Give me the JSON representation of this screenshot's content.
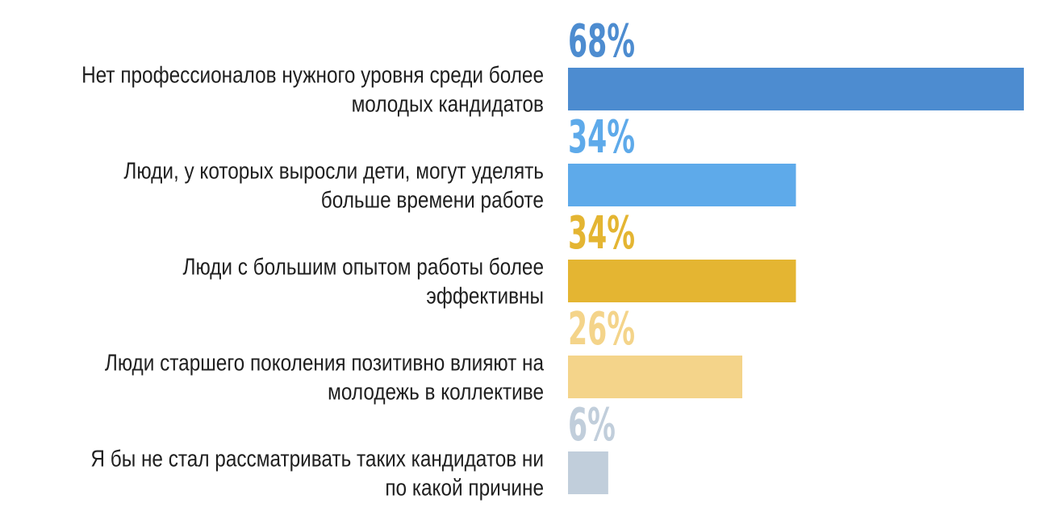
{
  "chart_data": {
    "type": "bar",
    "orientation": "horizontal",
    "categories": [
      "Нет профессионалов нужного уровня среди более молодых кандидатов",
      "Люди, у которых выросли дети, могут уделять больше времени работе",
      "Люди с большим опытом работы более эффективны",
      "Люди старшего поколения позитивно влияют на молодежь в коллективе",
      "Я бы не стал рассматривать таких кандидатов ни по какой причине"
    ],
    "category_lines": [
      [
        "Нет профессионалов нужного уровня среди более",
        "молодых кандидатов"
      ],
      [
        "Люди, у которых выросли дети, могут уделять",
        "больше времени работе"
      ],
      [
        "Люди с большим опытом работы более",
        "эффективны"
      ],
      [
        "Люди старшего поколения позитивно влияют на",
        "молодежь в коллективе"
      ],
      [
        "Я бы не стал рассматривать таких кандидатов ни",
        "по какой причине"
      ]
    ],
    "values": [
      68,
      34,
      34,
      26,
      6
    ],
    "value_labels": [
      "68%",
      "34%",
      "34%",
      "26%",
      "6%"
    ],
    "unit": "%",
    "bar_colors": [
      "#4d8cd0",
      "#5eaaea",
      "#e4b532",
      "#f4d48a",
      "#c1cedb"
    ],
    "label_colors": [
      "#4d8cd0",
      "#5eaaea",
      "#e4b532",
      "#f4d48a",
      "#c1cedb"
    ],
    "title": "",
    "xlabel": "",
    "ylabel": "",
    "xlim": [
      0,
      68
    ],
    "grid": false,
    "legend": "none"
  }
}
